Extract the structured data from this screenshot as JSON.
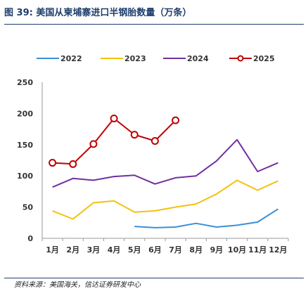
{
  "figure": {
    "title": "图 39:  美国从柬埔寨进口半钢胎数量（万条）",
    "source": "资料来源：美国海关，信达证券研发中心"
  },
  "chart_data": {
    "type": "line",
    "title": "图 39:  美国从柬埔寨进口半钢胎数量（万条）",
    "xlabel": "",
    "ylabel": "",
    "categories": [
      "1月",
      "2月",
      "3月",
      "4月",
      "5月",
      "6月",
      "7月",
      "8月",
      "9月",
      "10月",
      "11月",
      "12月"
    ],
    "ylim": [
      0,
      250
    ],
    "yticks": [
      0,
      50,
      100,
      150,
      200,
      250
    ],
    "grid": false,
    "legend_position": "top",
    "series": [
      {
        "name": "2022",
        "color": "#3a8fd8",
        "marker": false,
        "values": [
          null,
          null,
          null,
          null,
          19,
          17,
          18,
          24,
          18,
          21,
          26,
          47
        ]
      },
      {
        "name": "2023",
        "color": "#f4c20d",
        "marker": false,
        "values": [
          44,
          31,
          57,
          60,
          42,
          44,
          50,
          55,
          71,
          93,
          77,
          92
        ]
      },
      {
        "name": "2024",
        "color": "#7030a0",
        "marker": false,
        "values": [
          82,
          96,
          93,
          99,
          101,
          87,
          97,
          100,
          124,
          158,
          107,
          121
        ]
      },
      {
        "name": "2025",
        "color": "#c00000",
        "marker": true,
        "values": [
          121,
          119,
          151,
          192,
          166,
          156,
          189,
          null,
          null,
          null,
          null,
          null
        ]
      }
    ]
  }
}
